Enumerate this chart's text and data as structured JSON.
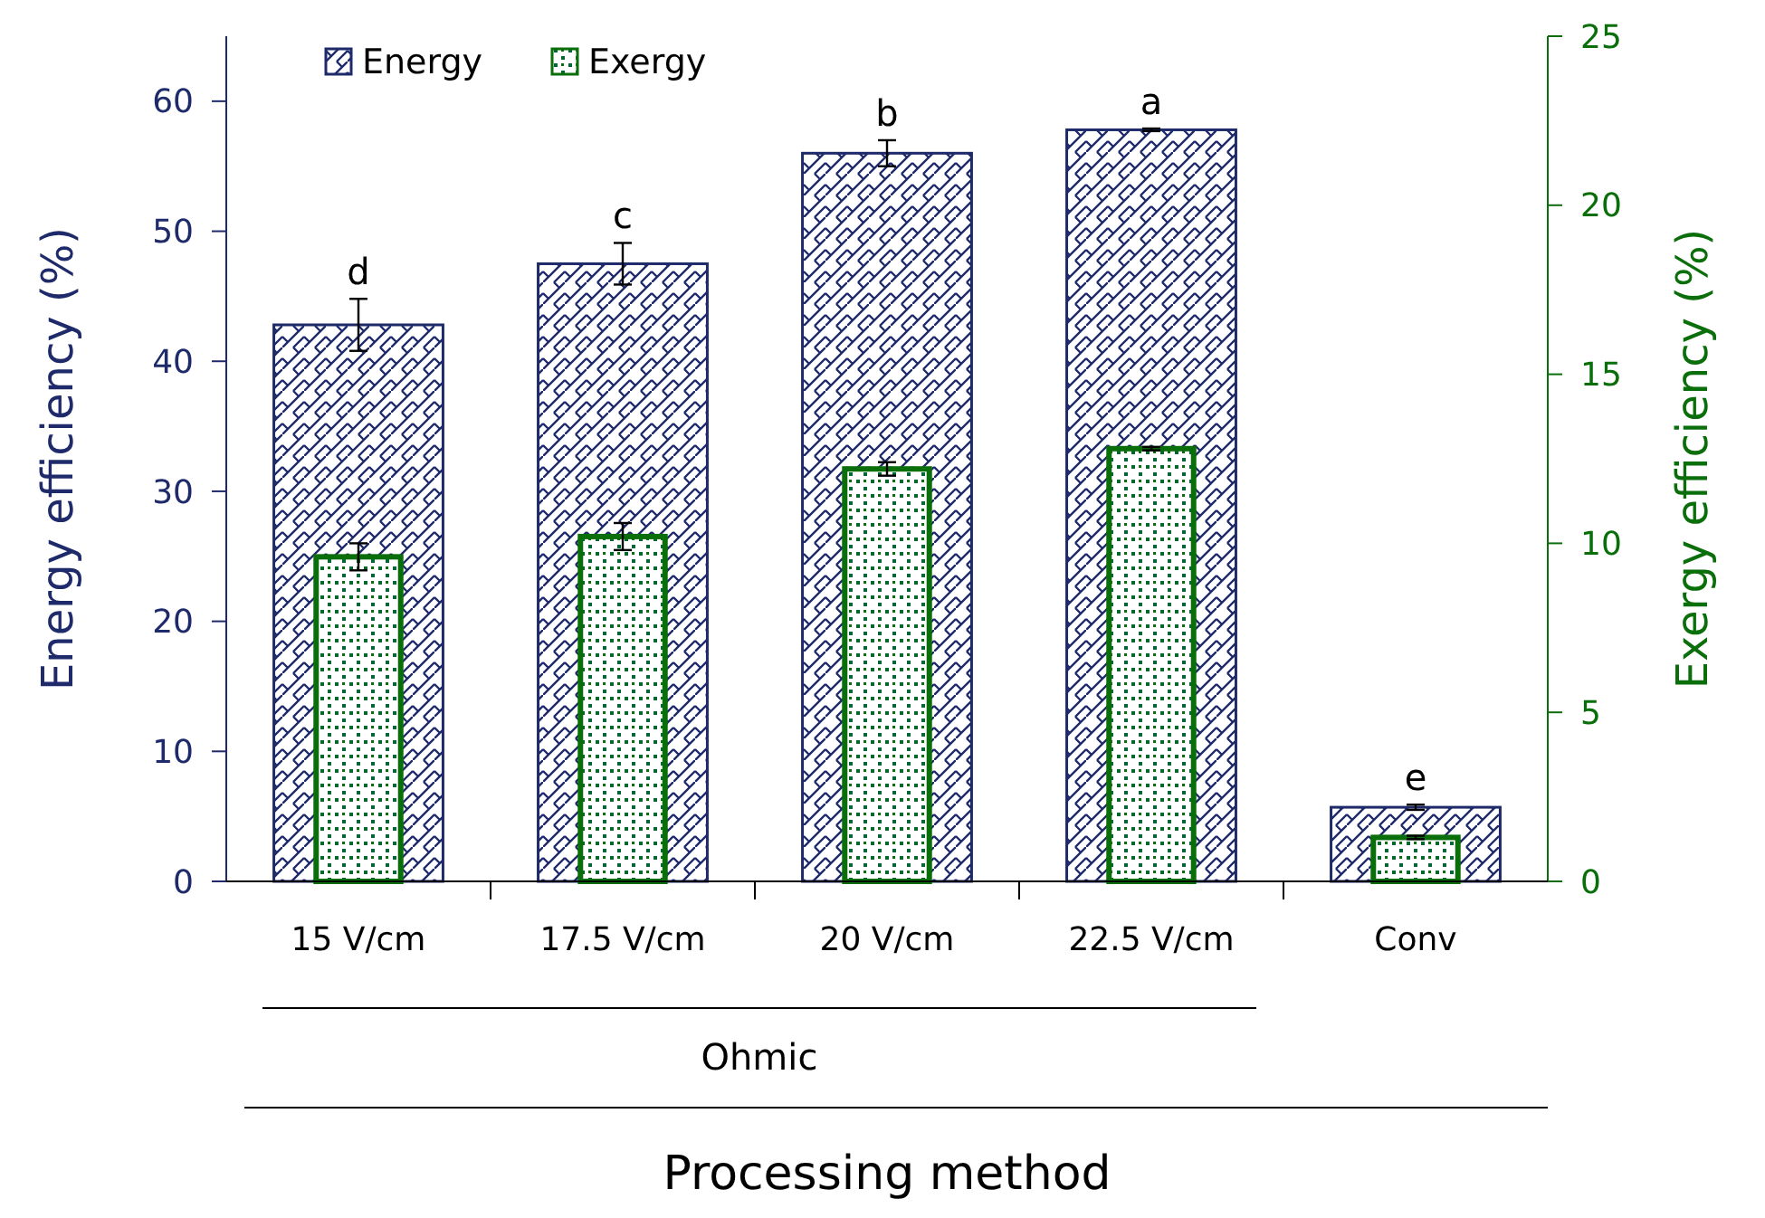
{
  "chart_data": {
    "type": "bar",
    "categories": [
      "15 V/cm",
      "17.5 V/cm",
      "20 V/cm",
      "22.5 V/cm",
      "Conv"
    ],
    "xlabel": "Processing method",
    "ylabel": "Energy efficiency (%)",
    "y2label": "Exergy efficiency (%)",
    "ylim": [
      0,
      65
    ],
    "yticks": [
      0,
      10,
      20,
      30,
      40,
      50,
      60
    ],
    "y2lim": [
      0,
      25
    ],
    "y2ticks": [
      0,
      5,
      10,
      15,
      20,
      25
    ],
    "series": [
      {
        "name": "Energy",
        "color": "#1f2a6b",
        "values": [
          42.8,
          47.5,
          56.0,
          57.8,
          5.7
        ],
        "errors": [
          2.0,
          1.6,
          1.0,
          0.1,
          0.2
        ]
      },
      {
        "name": "Exergy",
        "color": "#0a6e0a",
        "axis": "y2",
        "values": [
          9.6,
          10.2,
          12.2,
          12.8,
          1.3
        ],
        "errors": [
          0.4,
          0.4,
          0.2,
          0.05,
          0.05
        ]
      }
    ],
    "annotations": [
      {
        "text": "d",
        "x": "15 V/cm",
        "y": 44.8
      },
      {
        "text": "c",
        "x": "17.5 V/cm",
        "y": 49.1
      },
      {
        "text": "b",
        "x": "20 V/cm",
        "y": 57.0
      },
      {
        "text": "a",
        "x": "22.5 V/cm",
        "y": 57.9
      },
      {
        "text": "e",
        "x": "Conv",
        "y": 5.9
      },
      "Ohmic"
    ],
    "legend": "top left",
    "grid": false
  }
}
